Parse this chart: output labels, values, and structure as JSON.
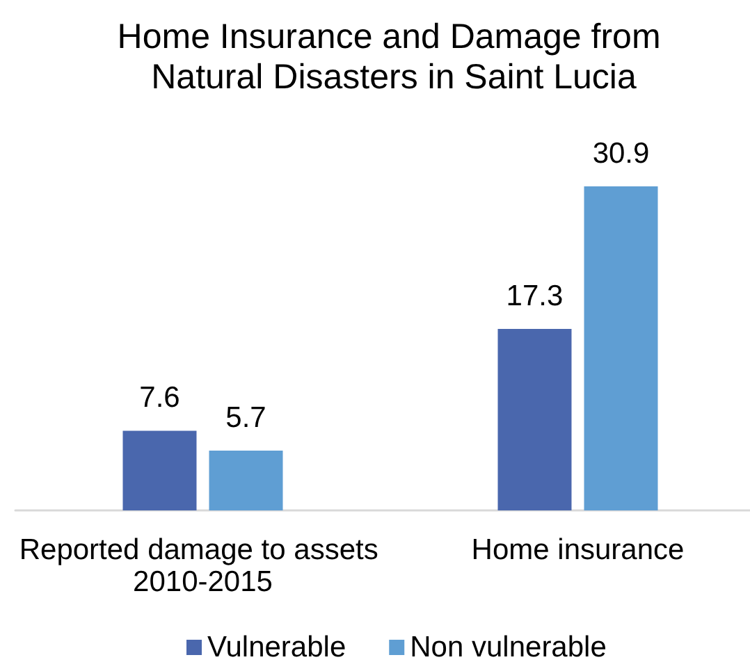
{
  "chart_data": {
    "type": "bar",
    "title": "Home Insurance and Damage from Natural Disasters in Saint Lucia",
    "categories": [
      "Reported damage to assets 2010-2015",
      "Home insurance"
    ],
    "series": [
      {
        "name": "Vulnerable",
        "color": "#4a67ad",
        "values": [
          7.6,
          17.3
        ]
      },
      {
        "name": "Non vulnerable",
        "color": "#5f9ed3",
        "values": [
          5.7,
          30.9
        ]
      }
    ],
    "data_labels": true,
    "legend": "bottom"
  }
}
